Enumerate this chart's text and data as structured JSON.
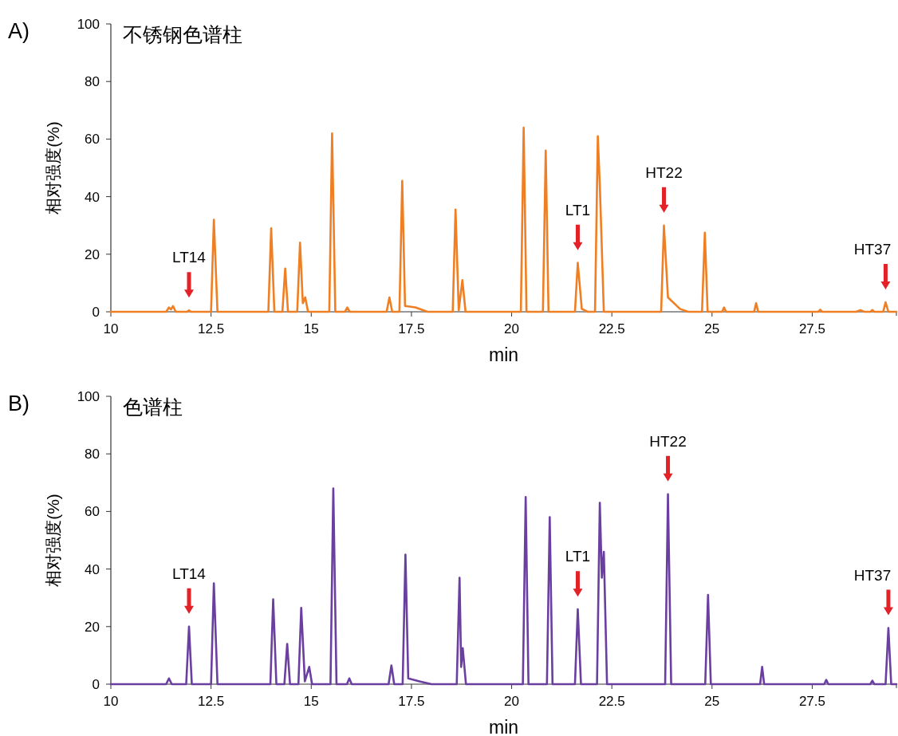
{
  "chart_data": [
    {
      "type": "line",
      "title": "不锈钢色谱柱",
      "xlabel": "min",
      "ylabel": "相对强度(%)",
      "xlim": [
        10,
        29.6
      ],
      "ylim": [
        0,
        100
      ],
      "xticks": [
        10,
        12.5,
        15,
        17.5,
        20,
        22.5,
        25,
        27.5
      ],
      "yticks": [
        0,
        20,
        40,
        60,
        80,
        100
      ],
      "grid": false,
      "annotations": [
        "A)",
        {
          "text": "LT14",
          "x": 11.95,
          "y": 0.5
        },
        {
          "text": "LT1",
          "x": 21.65,
          "y": 17
        },
        {
          "text": "HT22",
          "x": 23.8,
          "y": 30
        },
        {
          "text": "HT37",
          "x": 29.33,
          "y": 3.3
        }
      ],
      "x": [
        10,
        11.38,
        11.45,
        11.5,
        11.55,
        11.62,
        11.9,
        11.95,
        12.0,
        12.5,
        12.57,
        12.66,
        13.93,
        14.0,
        14.08,
        14.28,
        14.35,
        14.42,
        14.65,
        14.72,
        14.79,
        14.85,
        14.92,
        15.45,
        15.52,
        15.6,
        15.84,
        15.9,
        15.96,
        16.88,
        16.95,
        17.02,
        17.2,
        17.27,
        17.34,
        17.6,
        17.9,
        18.53,
        18.6,
        18.68,
        18.77,
        18.85,
        20.23,
        20.3,
        20.37,
        20.78,
        20.85,
        20.92,
        21.58,
        21.65,
        21.75,
        21.9,
        22.08,
        22.15,
        22.2,
        22.3,
        23.73,
        23.8,
        23.9,
        24.2,
        24.4,
        24.75,
        24.82,
        24.89,
        25.25,
        25.3,
        25.35,
        26.05,
        26.1,
        26.15,
        27.65,
        27.7,
        27.75,
        28.6,
        28.7,
        28.8,
        28.95,
        29.0,
        29.05,
        29.27,
        29.33,
        29.4,
        29.6
      ],
      "series": [
        {
          "color": "#f07f23",
          "values": [
            0,
            0,
            1.5,
            0.8,
            2,
            0,
            0,
            0.5,
            0,
            0,
            32,
            0,
            0,
            29,
            0,
            0,
            15,
            0,
            0,
            24,
            3,
            5,
            0,
            0,
            62,
            0,
            0,
            1.5,
            0,
            0,
            5,
            0,
            0,
            45.5,
            2,
            1.5,
            0,
            0,
            35.5,
            0.5,
            11,
            0,
            0,
            64,
            0,
            0,
            56,
            0,
            0,
            17,
            1,
            0,
            0,
            61,
            44,
            0,
            0,
            30,
            5,
            1,
            0,
            0,
            27.5,
            0,
            0,
            1.5,
            0,
            0,
            3,
            0,
            0,
            0.7,
            0,
            0,
            0.6,
            0,
            0,
            0.6,
            0,
            0,
            3.3,
            0,
            0
          ]
        }
      ]
    },
    {
      "type": "line",
      "title": "色谱柱",
      "xlabel": "min",
      "ylabel": "相对强度(%)",
      "xlim": [
        10,
        29.6
      ],
      "ylim": [
        0,
        100
      ],
      "xticks": [
        10,
        12.5,
        15,
        17.5,
        20,
        22.5,
        25,
        27.5
      ],
      "yticks": [
        0,
        20,
        40,
        60,
        80,
        100
      ],
      "grid": false,
      "annotations": [
        "B)",
        {
          "text": "LT14",
          "x": 11.95,
          "y": 20
        },
        {
          "text": "LT1",
          "x": 21.65,
          "y": 26
        },
        {
          "text": "HT22",
          "x": 23.9,
          "y": 66
        },
        {
          "text": "HT37",
          "x": 29.4,
          "y": 19.5
        }
      ],
      "x": [
        10,
        11.38,
        11.45,
        11.52,
        11.88,
        11.95,
        12.02,
        12.5,
        12.57,
        12.66,
        13.98,
        14.05,
        14.13,
        14.33,
        14.4,
        14.47,
        14.68,
        14.75,
        14.84,
        14.95,
        15.02,
        15.48,
        15.55,
        15.63,
        15.89,
        15.95,
        16.01,
        16.93,
        17.0,
        17.07,
        17.28,
        17.35,
        17.42,
        17.7,
        18.0,
        18.63,
        18.7,
        18.74,
        18.78,
        18.86,
        20.28,
        20.35,
        20.42,
        20.88,
        20.95,
        21.02,
        21.58,
        21.65,
        21.73,
        22.13,
        22.2,
        22.25,
        22.3,
        22.38,
        23.83,
        23.9,
        23.98,
        24.83,
        24.9,
        24.97,
        26.2,
        26.25,
        26.3,
        27.8,
        27.85,
        27.9,
        28.95,
        29.0,
        29.05,
        29.33,
        29.4,
        29.47,
        29.6
      ],
      "series": [
        {
          "color": "#6b3fa0",
          "values": [
            0,
            0,
            2,
            0,
            0,
            20,
            0,
            0,
            35,
            0,
            0,
            29.5,
            0,
            0,
            14,
            0,
            0,
            26.5,
            1,
            6,
            0,
            0,
            68,
            0,
            0,
            2,
            0,
            0,
            6.5,
            0,
            0,
            45,
            2,
            1,
            0,
            0,
            37,
            6,
            12.5,
            0,
            0,
            65,
            0,
            0,
            58,
            0,
            0,
            26,
            0,
            0,
            63,
            37,
            46,
            0,
            0,
            66,
            0,
            0,
            31,
            0,
            0,
            6,
            0,
            0,
            1.5,
            0,
            0,
            1.2,
            0,
            0,
            19.5,
            0,
            0
          ]
        }
      ]
    }
  ]
}
